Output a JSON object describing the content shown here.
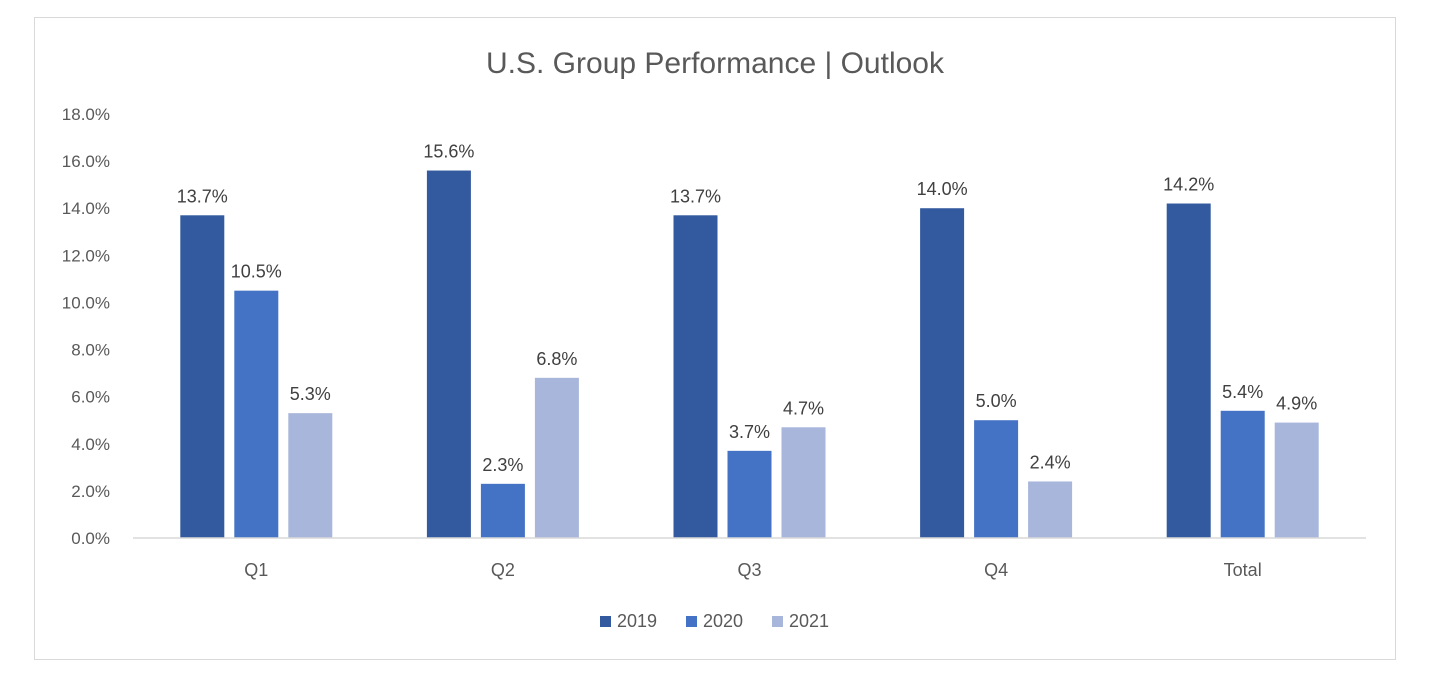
{
  "chart_data": {
    "type": "bar",
    "title": "U.S. Group Performance | Outlook",
    "xlabel": "",
    "ylabel": "",
    "categories": [
      "Q1",
      "Q2",
      "Q3",
      "Q4",
      "Total"
    ],
    "series": [
      {
        "name": "2019",
        "values": [
          13.7,
          15.6,
          13.7,
          14.0,
          14.2
        ],
        "labels": [
          "13.7%",
          "15.6%",
          "13.7%",
          "14.0%",
          "14.2%"
        ],
        "color": "#335a9e"
      },
      {
        "name": "2020",
        "values": [
          10.5,
          2.3,
          3.7,
          5.0,
          5.4
        ],
        "labels": [
          "10.5%",
          "2.3%",
          "3.7%",
          "5.0%",
          "5.4%"
        ],
        "color": "#4472c4"
      },
      {
        "name": "2021",
        "values": [
          5.3,
          6.8,
          4.7,
          2.4,
          4.9
        ],
        "labels": [
          "5.3%",
          "6.8%",
          "4.7%",
          "2.4%",
          "4.9%"
        ],
        "color": "#a8b6db"
      }
    ],
    "ylim": [
      0,
      18
    ],
    "yticks": [
      "0.0%",
      "2.0%",
      "4.0%",
      "6.0%",
      "8.0%",
      "10.0%",
      "12.0%",
      "14.0%",
      "16.0%",
      "18.0%"
    ],
    "grid": false,
    "legend_position": "bottom"
  }
}
